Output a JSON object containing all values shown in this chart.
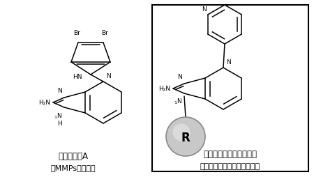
{
  "bg_color": "#ffffff",
  "struct_color": "#000000",
  "title1_line1": "アゲラジンA",
  "title1_line2": "（MMPs阻害剤）",
  "title2_line1": "本研究で合成した誘導体",
  "title2_line2": "（ニューロン分化調整分子）",
  "R_circle_color": "#bbbbbb",
  "R_label": "R",
  "lw": 1.1,
  "fs_label": 6.5,
  "fs_caption": 8.5,
  "fs_R": 12
}
